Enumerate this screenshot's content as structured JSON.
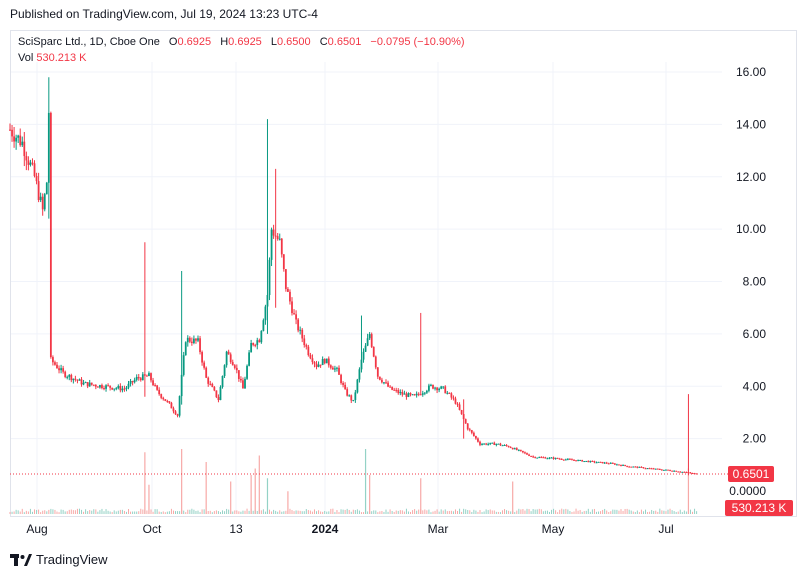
{
  "header": {
    "published": "Published on TradingView.com, Jul 19, 2024 13:23 UTC-4"
  },
  "legend": {
    "symbol": "SciSparc Ltd., 1D, Cboe One",
    "open_label": "O",
    "open": "0.6925",
    "high_label": "H",
    "high": "0.6925",
    "low_label": "L",
    "low": "0.6500",
    "close_label": "C",
    "close": "0.6501",
    "change": "−0.0795 (−10.90%)",
    "vol_label": "Vol",
    "vol": "530.213 K"
  },
  "footer": {
    "brand": "TradingView",
    "logo_icon": "tradingview-logo-icon"
  },
  "colors": {
    "up": "#089981",
    "down": "#f23645",
    "grid": "#f0f3fa",
    "axis_text": "#131722"
  },
  "chart_data": {
    "type": "candlestick",
    "ylim": [
      0,
      17
    ],
    "y_ticks": [
      "16.00",
      "14.00",
      "12.00",
      "10.00",
      "8.00",
      "6.00",
      "4.00",
      "2.00",
      "0.0000"
    ],
    "x_ticks": [
      "Aug",
      "Oct",
      "13",
      "2024",
      "Mar",
      "May",
      "Jul"
    ],
    "last_price_label": "0.6501",
    "last_price": 0.6501,
    "volume_label": "530.213 K",
    "price_anchors": [
      [
        0,
        13.8
      ],
      [
        6,
        13.3
      ],
      [
        12,
        12.0
      ],
      [
        16,
        10.7
      ],
      [
        18,
        11.8
      ],
      [
        19,
        14.5
      ],
      [
        20,
        5.0
      ],
      [
        26,
        4.5
      ],
      [
        36,
        4.1
      ],
      [
        46,
        4.0
      ],
      [
        56,
        3.9
      ],
      [
        62,
        4.3
      ],
      [
        68,
        4.4
      ],
      [
        72,
        3.8
      ],
      [
        78,
        3.3
      ],
      [
        82,
        2.9
      ],
      [
        86,
        5.8
      ],
      [
        92,
        5.7
      ],
      [
        96,
        4.3
      ],
      [
        102,
        3.5
      ],
      [
        106,
        5.3
      ],
      [
        110,
        4.8
      ],
      [
        114,
        3.9
      ],
      [
        118,
        5.6
      ],
      [
        122,
        5.8
      ],
      [
        126,
        7.5
      ],
      [
        128,
        10.0
      ],
      [
        132,
        9.5
      ],
      [
        135,
        7.8
      ],
      [
        140,
        6.4
      ],
      [
        146,
        5.3
      ],
      [
        150,
        4.8
      ],
      [
        154,
        5.0
      ],
      [
        160,
        4.6
      ],
      [
        164,
        3.8
      ],
      [
        168,
        3.4
      ],
      [
        172,
        5.0
      ],
      [
        176,
        6.0
      ],
      [
        180,
        4.4
      ],
      [
        186,
        3.9
      ],
      [
        192,
        3.7
      ],
      [
        198,
        3.6
      ],
      [
        202,
        3.8
      ],
      [
        206,
        4.0
      ],
      [
        212,
        3.9
      ],
      [
        218,
        3.4
      ],
      [
        224,
        2.4
      ],
      [
        230,
        1.8
      ],
      [
        238,
        1.8
      ],
      [
        244,
        1.7
      ],
      [
        250,
        1.5
      ],
      [
        256,
        1.3
      ],
      [
        266,
        1.25
      ],
      [
        280,
        1.15
      ],
      [
        294,
        1.05
      ],
      [
        302,
        0.95
      ],
      [
        314,
        0.85
      ],
      [
        324,
        0.78
      ],
      [
        332,
        0.7
      ],
      [
        336,
        0.6501
      ]
    ],
    "spikes": [
      {
        "day": 19,
        "high": 15.8,
        "low": 10.4
      },
      {
        "day": 66,
        "high": 9.5,
        "low": 3.6
      },
      {
        "day": 84,
        "high": 8.4,
        "low": 3.3
      },
      {
        "day": 126,
        "high": 14.2,
        "low": 6.0
      },
      {
        "day": 130,
        "high": 12.3,
        "low": 7.0
      },
      {
        "day": 172,
        "high": 6.7,
        "low": 4.8
      },
      {
        "day": 201,
        "high": 6.8,
        "low": 3.8
      },
      {
        "day": 222,
        "high": 3.5,
        "low": 2.0
      },
      {
        "day": 332,
        "high": 3.7,
        "low": 0.6
      }
    ],
    "volume_spikes": [
      {
        "day": 66,
        "value": 0.95
      },
      {
        "day": 84,
        "value": 1.0
      },
      {
        "day": 96,
        "value": 0.8
      },
      {
        "day": 68,
        "value": 0.45
      },
      {
        "day": 108,
        "value": 0.5
      },
      {
        "day": 118,
        "value": 0.6
      },
      {
        "day": 120,
        "value": 0.7
      },
      {
        "day": 122,
        "value": 0.9
      },
      {
        "day": 126,
        "value": 0.55
      },
      {
        "day": 136,
        "value": 0.35
      },
      {
        "day": 174,
        "value": 1.0
      },
      {
        "day": 176,
        "value": 0.6
      },
      {
        "day": 201,
        "value": 0.55
      },
      {
        "day": 246,
        "value": 0.5
      },
      {
        "day": 332,
        "value": 0.7
      }
    ]
  }
}
